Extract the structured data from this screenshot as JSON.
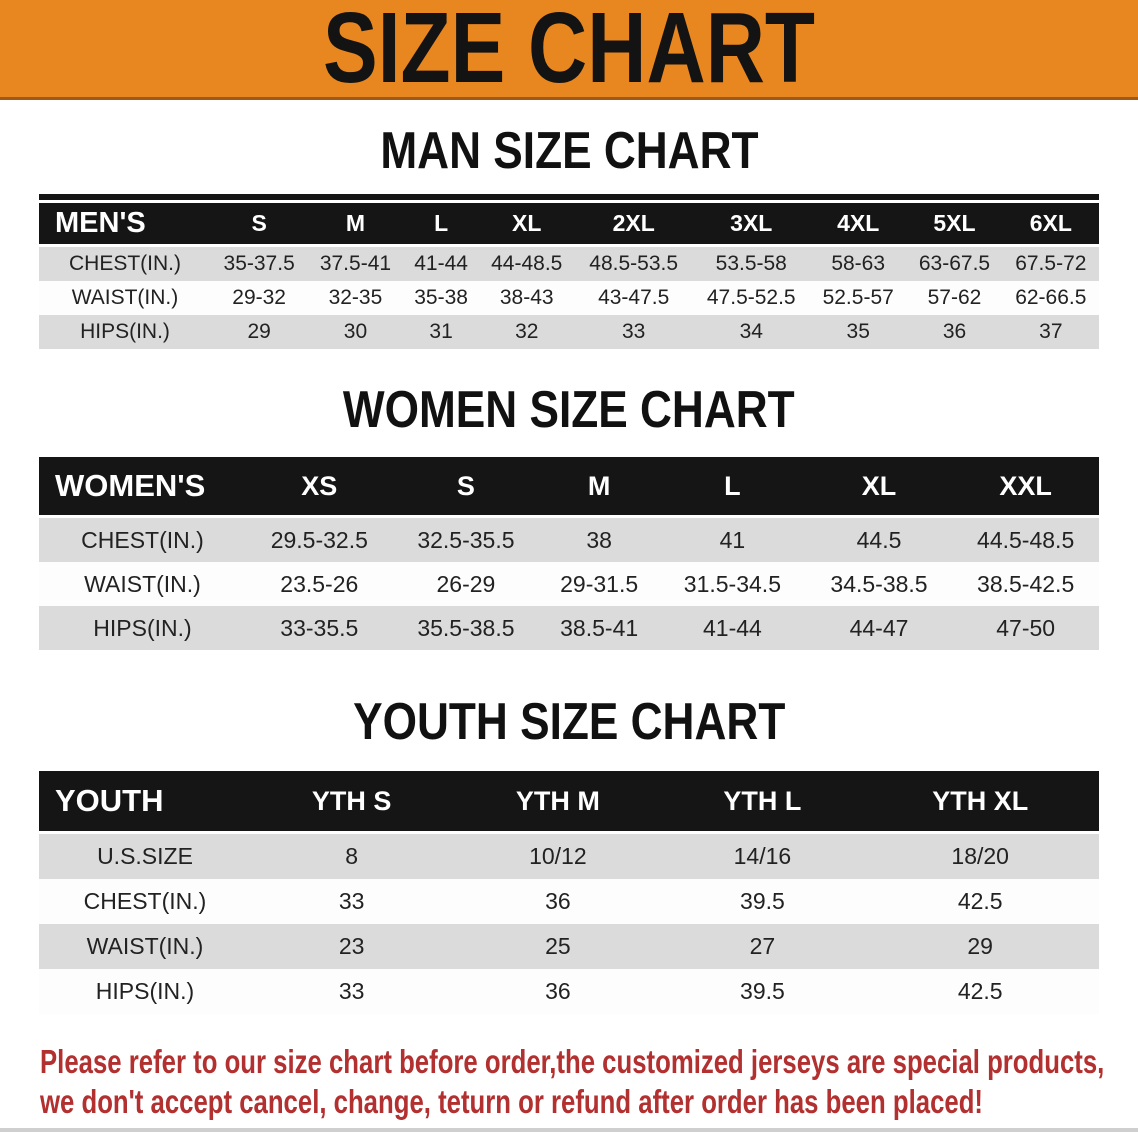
{
  "banner": {
    "title": "SIZE CHART",
    "background_color": "#E88620",
    "text_color": "#131313"
  },
  "sections": [
    {
      "heading": "MAN SIZE CHART",
      "table": {
        "header": [
          "MEN'S",
          "S",
          "M",
          "L",
          "XL",
          "2XL",
          "3XL",
          "4XL",
          "5XL",
          "6XL"
        ],
        "rows": [
          {
            "label": "CHEST(IN.)",
            "values": [
              "35-37.5",
              "37.5-41",
              "41-44",
              "44-48.5",
              "48.5-53.5",
              "53.5-58",
              "58-63",
              "63-67.5",
              "67.5-72"
            ]
          },
          {
            "label": "WAIST(IN.)",
            "values": [
              "29-32",
              "32-35",
              "35-38",
              "38-43",
              "43-47.5",
              "47.5-52.5",
              "52.5-57",
              "57-62",
              "62-66.5"
            ]
          },
          {
            "label": "HIPS(IN.)",
            "values": [
              "29",
              "30",
              "31",
              "32",
              "33",
              "34",
              "35",
              "36",
              "37"
            ]
          }
        ]
      }
    },
    {
      "heading": "WOMEN SIZE CHART",
      "table": {
        "header": [
          "WOMEN'S",
          "XS",
          "S",
          "M",
          "L",
          "XL",
          "XXL"
        ],
        "rows": [
          {
            "label": "CHEST(IN.)",
            "values": [
              "29.5-32.5",
              "32.5-35.5",
              "38",
              "41",
              "44.5",
              "44.5-48.5"
            ]
          },
          {
            "label": "WAIST(IN.)",
            "values": [
              "23.5-26",
              "26-29",
              "29-31.5",
              "31.5-34.5",
              "34.5-38.5",
              "38.5-42.5"
            ]
          },
          {
            "label": "HIPS(IN.)",
            "values": [
              "33-35.5",
              "35.5-38.5",
              "38.5-41",
              "41-44",
              "44-47",
              "47-50"
            ]
          }
        ]
      }
    },
    {
      "heading": "YOUTH SIZE CHART",
      "table": {
        "header": [
          "YOUTH",
          "YTH S",
          "YTH M",
          "YTH L",
          "YTH XL"
        ],
        "rows": [
          {
            "label": "U.S.SIZE",
            "values": [
              "8",
              "10/12",
              "14/16",
              "18/20"
            ]
          },
          {
            "label": "CHEST(IN.)",
            "values": [
              "33",
              "36",
              "39.5",
              "42.5"
            ]
          },
          {
            "label": "WAIST(IN.)",
            "values": [
              "23",
              "25",
              "27",
              "29"
            ]
          },
          {
            "label": "HIPS(IN.)",
            "values": [
              "33",
              "36",
              "39.5",
              "42.5"
            ]
          }
        ]
      }
    }
  ],
  "footer": {
    "color": "#B23030",
    "lines": [
      "Please refer to our size chart before order,the customized jerseys are special products,",
      "we don't accept cancel, change, teturn or refund after order has been placed!"
    ]
  },
  "colors": {
    "header_bar": "#151515",
    "row_shaded": "#DBDBDB",
    "row_plain": "#FDFDFD"
  }
}
